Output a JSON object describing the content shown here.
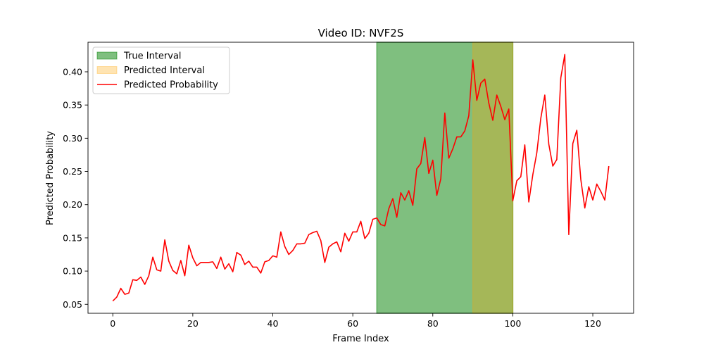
{
  "chart_data": {
    "type": "line",
    "title": "Video ID: NVF2S",
    "xlabel": "Frame Index",
    "ylabel": "Predicted Probability",
    "xlim": [
      -6.2,
      130.2
    ],
    "ylim": [
      0.0365,
      0.4445
    ],
    "xticks": [
      0,
      20,
      40,
      60,
      80,
      100,
      120
    ],
    "yticks": [
      0.05,
      0.1,
      0.15,
      0.2,
      0.25,
      0.3,
      0.35,
      0.4
    ],
    "ytick_labels": [
      "0.05",
      "0.10",
      "0.15",
      "0.20",
      "0.25",
      "0.30",
      "0.35",
      "0.40"
    ],
    "grid": false,
    "legend_position": "top-left",
    "legend": [
      {
        "label": "True Interval",
        "kind": "patch",
        "color": "#008000",
        "alpha": 0.5
      },
      {
        "label": "Predicted Interval",
        "kind": "patch",
        "color": "#ffa500",
        "alpha": 0.3
      },
      {
        "label": "Predicted Probability",
        "kind": "line",
        "color": "#ff0000"
      }
    ],
    "true_interval": [
      66,
      100
    ],
    "predicted_interval": [
      90,
      100
    ],
    "series": [
      {
        "name": "Predicted Probability",
        "color": "#ff0000",
        "x": [
          0,
          1,
          2,
          3,
          4,
          5,
          6,
          7,
          8,
          9,
          10,
          11,
          12,
          13,
          14,
          15,
          16,
          17,
          18,
          19,
          20,
          21,
          22,
          23,
          24,
          25,
          26,
          27,
          28,
          29,
          30,
          31,
          32,
          33,
          34,
          35,
          36,
          37,
          38,
          39,
          40,
          41,
          42,
          43,
          44,
          45,
          46,
          47,
          48,
          49,
          50,
          51,
          52,
          53,
          54,
          55,
          56,
          57,
          58,
          59,
          60,
          61,
          62,
          63,
          64,
          65,
          66,
          67,
          68,
          69,
          70,
          71,
          72,
          73,
          74,
          75,
          76,
          77,
          78,
          79,
          80,
          81,
          82,
          83,
          84,
          85,
          86,
          87,
          88,
          89,
          90,
          91,
          92,
          93,
          94,
          95,
          96,
          97,
          98,
          99,
          100,
          101,
          102,
          103,
          104,
          105,
          106,
          107,
          108,
          109,
          110,
          111,
          112,
          113,
          114,
          115,
          116,
          117,
          118,
          119,
          120,
          121,
          122,
          123,
          124
        ],
        "values": [
          0.055,
          0.061,
          0.074,
          0.065,
          0.067,
          0.087,
          0.086,
          0.091,
          0.08,
          0.093,
          0.121,
          0.102,
          0.1,
          0.147,
          0.115,
          0.101,
          0.096,
          0.116,
          0.093,
          0.139,
          0.12,
          0.108,
          0.113,
          0.113,
          0.113,
          0.114,
          0.104,
          0.121,
          0.103,
          0.111,
          0.099,
          0.128,
          0.124,
          0.11,
          0.115,
          0.106,
          0.106,
          0.097,
          0.114,
          0.116,
          0.123,
          0.121,
          0.159,
          0.137,
          0.125,
          0.131,
          0.141,
          0.141,
          0.142,
          0.155,
          0.158,
          0.16,
          0.146,
          0.113,
          0.136,
          0.141,
          0.144,
          0.129,
          0.157,
          0.145,
          0.159,
          0.159,
          0.175,
          0.149,
          0.157,
          0.178,
          0.18,
          0.17,
          0.168,
          0.194,
          0.209,
          0.181,
          0.218,
          0.207,
          0.221,
          0.199,
          0.254,
          0.262,
          0.301,
          0.247,
          0.267,
          0.214,
          0.239,
          0.338,
          0.27,
          0.284,
          0.302,
          0.302,
          0.311,
          0.334,
          0.418,
          0.357,
          0.383,
          0.389,
          0.353,
          0.327,
          0.365,
          0.348,
          0.328,
          0.344,
          0.206,
          0.236,
          0.242,
          0.29,
          0.204,
          0.245,
          0.278,
          0.33,
          0.365,
          0.291,
          0.258,
          0.268,
          0.391,
          0.426,
          0.155,
          0.292,
          0.312,
          0.238,
          0.195,
          0.227,
          0.207,
          0.231,
          0.22,
          0.207,
          0.258
        ]
      }
    ]
  }
}
